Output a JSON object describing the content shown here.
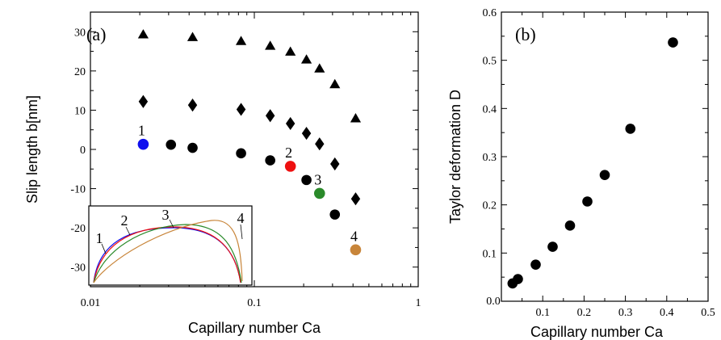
{
  "chart_data": [
    {
      "type": "scatter",
      "panel_label": "(a)",
      "xlabel": "Capillary number Ca",
      "ylabel": "Slip length b[nm]",
      "xscale": "log",
      "xlim": [
        0.01,
        1
      ],
      "ylim": [
        -35,
        35
      ],
      "xticks": [
        0.01,
        0.1,
        1
      ],
      "xticklabels": [
        "0.01",
        "0.1",
        "1"
      ],
      "yticks": [
        -30,
        -20,
        -10,
        0,
        10,
        20,
        30
      ],
      "yticklabels": [
        "-30",
        "-20",
        "-10",
        "0",
        "10",
        "20",
        "30"
      ],
      "series": [
        {
          "marker": "triangle",
          "color": "#000000",
          "points": [
            [
              0.021,
              29.2
            ],
            [
              0.042,
              28.5
            ],
            [
              0.083,
              27.5
            ],
            [
              0.125,
              26.3
            ],
            [
              0.166,
              24.8
            ],
            [
              0.208,
              22.8
            ],
            [
              0.25,
              20.5
            ],
            [
              0.31,
              16.5
            ],
            [
              0.415,
              7.8
            ]
          ]
        },
        {
          "marker": "diamond",
          "color": "#000000",
          "points": [
            [
              0.021,
              12.2
            ],
            [
              0.042,
              11.3
            ],
            [
              0.083,
              10.2
            ],
            [
              0.125,
              8.6
            ],
            [
              0.166,
              6.6
            ],
            [
              0.208,
              4.1
            ],
            [
              0.25,
              1.4
            ],
            [
              0.31,
              -3.7
            ],
            [
              0.415,
              -12.6
            ]
          ]
        },
        {
          "marker": "circle",
          "color": "#000000",
          "points": [
            [
              0.031,
              1.2
            ],
            [
              0.042,
              0.4
            ],
            [
              0.083,
              -1.0
            ],
            [
              0.125,
              -2.8
            ],
            [
              0.208,
              -7.8
            ],
            [
              0.31,
              -16.6
            ]
          ]
        }
      ],
      "highlighted_points": [
        {
          "label": "1",
          "x": 0.021,
          "y": 1.3,
          "color": "#1010ee"
        },
        {
          "label": "2",
          "x": 0.166,
          "y": -4.3,
          "color": "#ee1010"
        },
        {
          "label": "3",
          "x": 0.25,
          "y": -11.2,
          "color": "#2a8a2a"
        },
        {
          "label": "4",
          "x": 0.415,
          "y": -25.6,
          "color": "#c8853a"
        }
      ],
      "inset": {
        "description_labels": [
          "1",
          "2",
          "3",
          "4"
        ],
        "curve_colors": [
          "#1010ee",
          "#ee1010",
          "#2a8a2a",
          "#c8853a"
        ]
      }
    },
    {
      "type": "scatter",
      "panel_label": "(b)",
      "xlabel": "Capillary number Ca",
      "ylabel": "Taylor deformation D",
      "xlim": [
        0,
        0.5
      ],
      "ylim": [
        0,
        0.6
      ],
      "xticks": [
        0,
        0.1,
        0.2,
        0.3,
        0.4,
        0.5
      ],
      "xticklabels": [
        "0.0",
        "0.1",
        "0.2",
        "0.3",
        "0.4",
        "0.5"
      ],
      "yticks": [
        0.1,
        0.2,
        0.3,
        0.4,
        0.5,
        0.6
      ],
      "yticklabels": [
        "0.1",
        "0.2",
        "0.3",
        "0.4",
        "0.5",
        "0.6"
      ],
      "series": [
        {
          "marker": "circle",
          "color": "#000000",
          "points": [
            [
              0.027,
              0.037
            ],
            [
              0.04,
              0.046
            ],
            [
              0.083,
              0.076
            ],
            [
              0.124,
              0.113
            ],
            [
              0.166,
              0.157
            ],
            [
              0.208,
              0.207
            ],
            [
              0.25,
              0.262
            ],
            [
              0.312,
              0.358
            ],
            [
              0.415,
              0.537
            ]
          ]
        }
      ]
    }
  ]
}
